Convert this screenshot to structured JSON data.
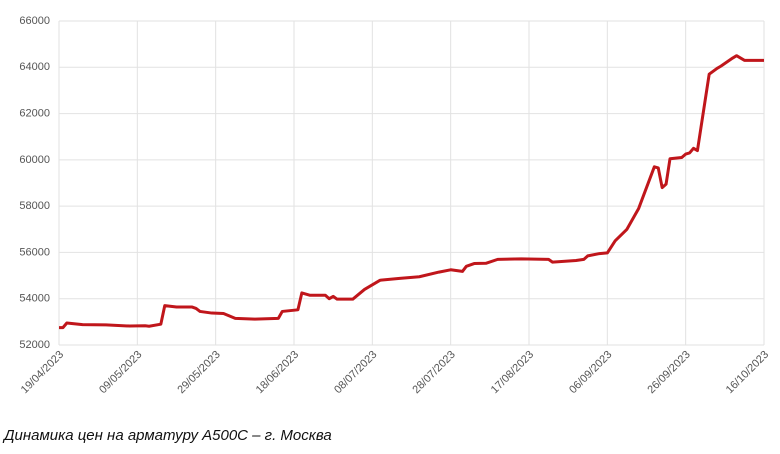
{
  "chart_data": {
    "type": "line",
    "title": "Динамика цен на арматуру А500С – г. Москва",
    "x": [
      "19/04/2023",
      "20/04/2023",
      "21/04/2023",
      "25/04/2023",
      "01/05/2023",
      "07/05/2023",
      "11/05/2023",
      "12/05/2023",
      "15/05/2023",
      "16/05/2023",
      "19/05/2023",
      "23/05/2023",
      "24/05/2023",
      "25/05/2023",
      "28/05/2023",
      "31/05/2023",
      "03/06/2023",
      "08/06/2023",
      "14/06/2023",
      "15/06/2023",
      "19/06/2023",
      "20/06/2023",
      "22/06/2023",
      "26/06/2023",
      "27/06/2023",
      "28/06/2023",
      "29/06/2023",
      "03/07/2023",
      "06/07/2023",
      "10/07/2023",
      "15/07/2023",
      "20/07/2023",
      "25/07/2023",
      "28/07/2023",
      "31/07/2023",
      "01/08/2023",
      "03/08/2023",
      "06/08/2023",
      "09/08/2023",
      "15/08/2023",
      "22/08/2023",
      "23/08/2023",
      "29/08/2023",
      "31/08/2023",
      "01/09/2023",
      "04/09/2023",
      "06/09/2023",
      "08/09/2023",
      "11/09/2023",
      "14/09/2023",
      "18/09/2023",
      "19/09/2023",
      "20/09/2023",
      "21/09/2023",
      "22/09/2023",
      "25/09/2023",
      "26/09/2023",
      "27/09/2023",
      "28/09/2023",
      "29/09/2023",
      "02/10/2023",
      "04/10/2023",
      "05/10/2023",
      "08/10/2023",
      "09/10/2023",
      "11/10/2023",
      "16/10/2023"
    ],
    "series": [
      {
        "name": "А500С",
        "color": "#c0161b",
        "values": [
          52750,
          52750,
          52950,
          52880,
          52870,
          52820,
          52830,
          52810,
          52900,
          53700,
          53640,
          53640,
          53580,
          53450,
          53380,
          53360,
          53150,
          53120,
          53150,
          53450,
          53520,
          54250,
          54150,
          54150,
          54000,
          54100,
          53980,
          53980,
          54400,
          54800,
          54880,
          54950,
          55150,
          55250,
          55180,
          55400,
          55520,
          55530,
          55700,
          55720,
          55700,
          55580,
          55650,
          55700,
          55850,
          55950,
          55980,
          56500,
          57000,
          57900,
          59700,
          59650,
          58800,
          58950,
          60050,
          60100,
          60250,
          60300,
          60500,
          60400,
          63700,
          63950,
          64050,
          64400,
          64500,
          64300,
          64300
        ]
      }
    ],
    "xlim": [
      "19/04/2023",
      "16/10/2023"
    ],
    "xticks": [
      "19/04/2023",
      "09/05/2023",
      "29/05/2023",
      "18/06/2023",
      "08/07/2023",
      "28/07/2023",
      "17/08/2023",
      "06/09/2023",
      "26/09/2023",
      "16/10/2023"
    ],
    "ylim": [
      52000,
      66000
    ],
    "yticks": [
      52000,
      54000,
      56000,
      58000,
      60000,
      62000,
      64000,
      66000
    ],
    "grid": true
  }
}
